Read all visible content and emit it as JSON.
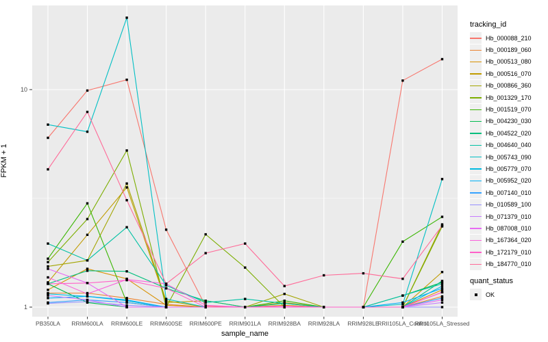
{
  "chart_data": {
    "type": "line",
    "title": "",
    "xlabel": "sample_name",
    "ylabel": "FPKM + 1",
    "y_scale": "log10",
    "y_ticks": [
      1,
      10
    ],
    "y_minor_ticks": [
      3.162
    ],
    "ylim": [
      0.95,
      24.4
    ],
    "grid": "on",
    "legend_position": "right",
    "panel_bg": "#EBEBEB",
    "grid_color": "#FFFFFF",
    "axis_text_color": "#4D4D4D",
    "marker_color": "#000000",
    "marker_shape": "filled-square",
    "categories": [
      "PB350LA",
      "RRIM600LA",
      "RRIM600LE",
      "RRIM600SE",
      "RRIM600PE",
      "RRIM901LA",
      "RRIM928BA",
      "RRIM928LA",
      "RRIM928LE",
      "RRII105LA_Control",
      "RRII105LA_Stressed"
    ],
    "series": [
      {
        "name": "Hb_000088_210",
        "color": "#F8766D",
        "values": [
          6.0,
          9.9,
          11.1,
          2.27,
          1.01,
          1.0,
          1.0,
          1.0,
          1.0,
          11.0,
          13.8
        ]
      },
      {
        "name": "Hb_000189_060",
        "color": "#EA8331",
        "values": [
          1.16,
          1.16,
          1.1,
          1.03,
          1.0,
          1.0,
          1.0,
          1.0,
          1.0,
          1.0,
          1.12
        ]
      },
      {
        "name": "Hb_000513_080",
        "color": "#D89000",
        "values": [
          1.2,
          1.5,
          1.35,
          1.02,
          1.0,
          1.0,
          1.02,
          1.0,
          1.0,
          1.0,
          1.2
        ]
      },
      {
        "name": "Hb_000516_070",
        "color": "#C09B00",
        "values": [
          1.3,
          2.15,
          3.55,
          1.05,
          1.07,
          1.0,
          1.05,
          1.0,
          1.0,
          1.0,
          1.45
        ]
      },
      {
        "name": "Hb_000866_360",
        "color": "#A3A500",
        "values": [
          1.54,
          1.64,
          3.7,
          1.07,
          1.0,
          1.0,
          1.15,
          1.0,
          1.0,
          1.0,
          2.4
        ]
      },
      {
        "name": "Hb_001329_170",
        "color": "#7CAE00",
        "values": [
          1.61,
          2.54,
          5.25,
          1.0,
          2.16,
          1.52,
          1.0,
          1.0,
          1.0,
          1.0,
          2.35
        ]
      },
      {
        "name": "Hb_001519_070",
        "color": "#39B600",
        "values": [
          1.67,
          3.0,
          1.05,
          1.0,
          1.0,
          1.0,
          1.07,
          1.0,
          1.0,
          2.0,
          2.6
        ]
      },
      {
        "name": "Hb_004230_030",
        "color": "#00BB4E",
        "values": [
          1.28,
          1.05,
          1.0,
          1.0,
          1.0,
          1.0,
          1.0,
          1.0,
          1.0,
          1.13,
          1.3
        ]
      },
      {
        "name": "Hb_004522_020",
        "color": "#00BF7D",
        "values": [
          1.28,
          1.47,
          1.46,
          1.22,
          1.07,
          1.0,
          1.04,
          1.0,
          1.0,
          1.0,
          1.32
        ]
      },
      {
        "name": "Hb_004640_040",
        "color": "#00C1A3",
        "values": [
          1.96,
          1.64,
          2.33,
          1.26,
          1.05,
          1.09,
          1.04,
          1.0,
          1.0,
          1.13,
          1.28
        ]
      },
      {
        "name": "Hb_005743_090",
        "color": "#00BFC4",
        "values": [
          6.9,
          6.4,
          21.4,
          1.09,
          1.0,
          1.0,
          1.0,
          1.0,
          1.0,
          1.03,
          3.88
        ]
      },
      {
        "name": "Hb_005779_070",
        "color": "#00BAE0",
        "values": [
          1.15,
          1.12,
          1.07,
          1.0,
          1.0,
          1.0,
          1.0,
          1.0,
          1.0,
          1.0,
          1.25
        ]
      },
      {
        "name": "Hb_005952_020",
        "color": "#00B0F6",
        "values": [
          1.1,
          1.12,
          1.08,
          1.0,
          1.0,
          1.0,
          1.0,
          1.0,
          1.0,
          1.05,
          1.22
        ]
      },
      {
        "name": "Hb_007140_010",
        "color": "#35A2FF",
        "values": [
          1.05,
          1.08,
          1.05,
          1.0,
          1.0,
          1.0,
          1.0,
          1.0,
          1.0,
          1.0,
          1.1
        ]
      },
      {
        "name": "Hb_010589_100",
        "color": "#9590FF",
        "values": [
          1.04,
          1.06,
          1.02,
          1.0,
          1.0,
          1.0,
          1.0,
          1.0,
          1.0,
          1.0,
          1.0
        ]
      },
      {
        "name": "Hb_071379_010",
        "color": "#C77CFF",
        "values": [
          1.13,
          1.08,
          1.0,
          1.0,
          1.0,
          1.0,
          1.0,
          1.0,
          1.0,
          1.0,
          1.05
        ]
      },
      {
        "name": "Hb_087008_010",
        "color": "#E76BF3",
        "values": [
          1.5,
          1.29,
          1.0,
          1.0,
          1.0,
          1.0,
          1.0,
          1.0,
          1.0,
          1.0,
          1.08
        ]
      },
      {
        "name": "Hb_167364_020",
        "color": "#FA62DB",
        "values": [
          1.37,
          1.15,
          1.34,
          1.28,
          1.02,
          1.0,
          1.01,
          1.0,
          1.0,
          1.0,
          1.17
        ]
      },
      {
        "name": "Hb_172179_010",
        "color": "#FF61C9",
        "values": [
          1.28,
          1.29,
          1.33,
          1.22,
          1.0,
          1.0,
          1.0,
          1.0,
          1.0,
          1.0,
          1.17
        ]
      },
      {
        "name": "Hb_184770_010",
        "color": "#FF6A98",
        "values": [
          4.3,
          7.9,
          3.1,
          1.28,
          1.77,
          1.96,
          1.25,
          1.4,
          1.43,
          1.35,
          2.37
        ]
      }
    ],
    "legend": {
      "color_legend_title": "tracking_id",
      "shape_legend_title": "quant_status",
      "shape_legend_entries": [
        {
          "label": "OK",
          "marker": "black-square"
        }
      ]
    }
  }
}
